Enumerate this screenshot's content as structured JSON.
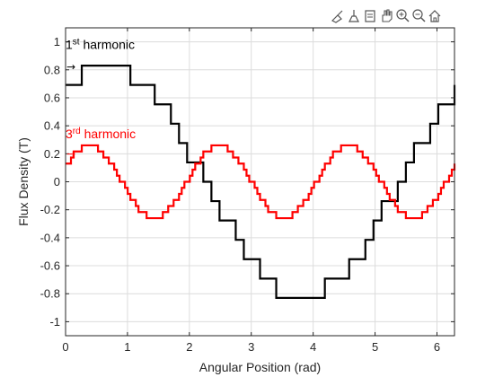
{
  "toolbar": {
    "icons": [
      "brush-icon",
      "data-tips-icon",
      "export-icon",
      "pan-icon",
      "zoom-in-icon",
      "zoom-out-icon",
      "home-icon"
    ]
  },
  "chart_data": {
    "type": "line",
    "xlabel": "Angular Position (rad)",
    "ylabel": "Flux Density (T)",
    "xlim": [
      0,
      6.2832
    ],
    "ylim": [
      -1.1,
      1.1
    ],
    "xticks": [
      0,
      1,
      2,
      3,
      4,
      5,
      6
    ],
    "yticks": [
      -1,
      -0.8,
      -0.6,
      -0.4,
      -0.2,
      0,
      0.2,
      0.4,
      0.6,
      0.8,
      1
    ],
    "ytick_labels": [
      "-1",
      "-0.8",
      "-0.6",
      "-0.4",
      "-0.2",
      "0",
      "0.2",
      "0.4",
      "0.6",
      "0.8",
      "1"
    ],
    "grid": true,
    "series": [
      {
        "color": "#000000",
        "amplitude": 0.83,
        "harmonic": 1,
        "phase": 0.87,
        "steps_per_period": 48,
        "note": "stepped sinusoid"
      },
      {
        "color": "#ff0000",
        "amplitude": 0.26,
        "harmonic": 3,
        "phase": 0.4,
        "steps_per_period": 48,
        "note": "stepped sinusoid, clipped top"
      }
    ],
    "annotations": [
      {
        "base": "1",
        "sup": "st",
        "text": " harmonic",
        "arrow": "→",
        "color": "#000000",
        "x": 0.0,
        "y": 0.95,
        "arrow_y": 0.82
      },
      {
        "base": "3",
        "sup": "rd",
        "text": " harmonic",
        "arrow": "→",
        "color": "#ff0000",
        "x": 0.0,
        "y": 0.31,
        "arrow_y": 0.2
      }
    ]
  }
}
